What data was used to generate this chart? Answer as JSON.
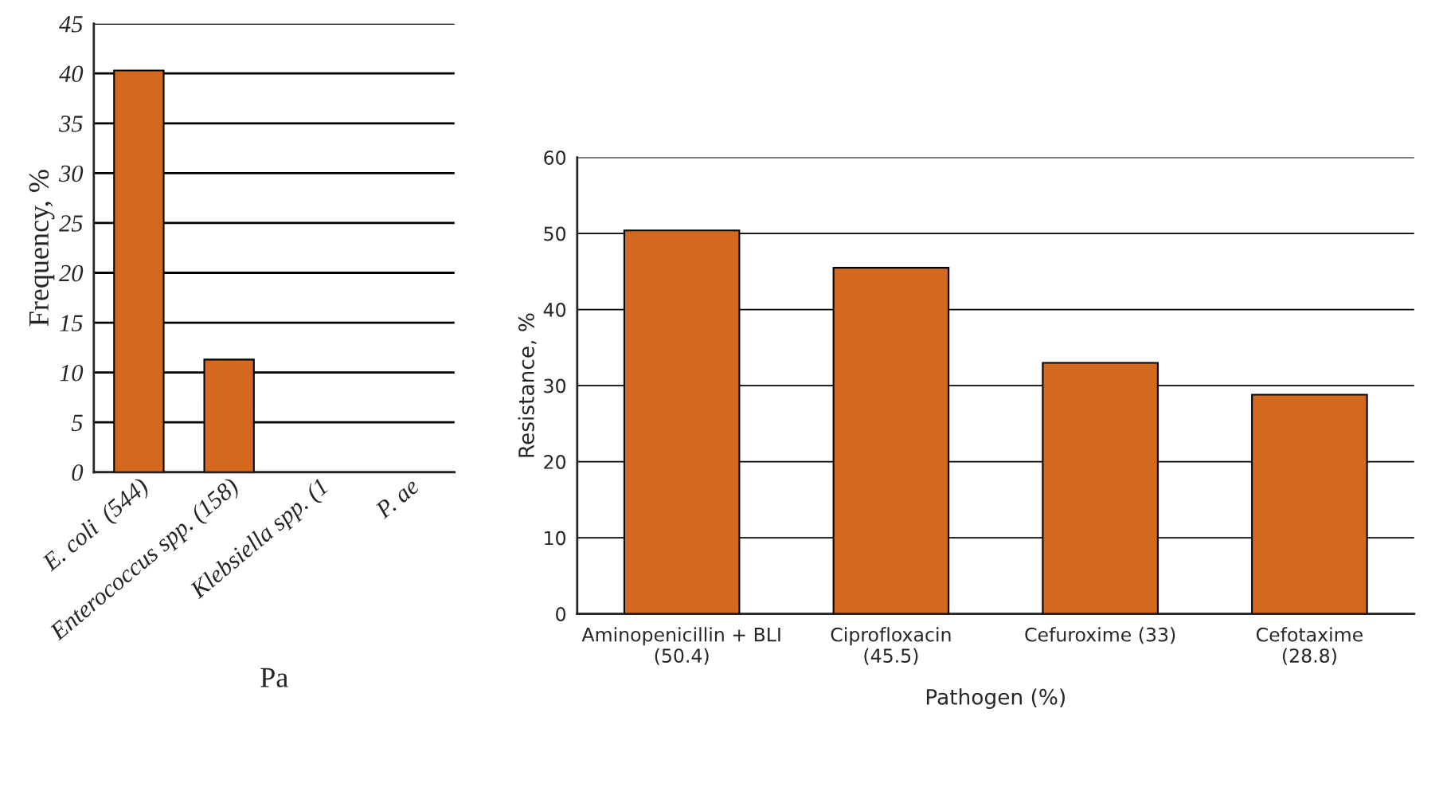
{
  "chart_data": [
    {
      "type": "bar",
      "ylabel": "Frequency, %",
      "xlabel": "Pa",
      "categories": [
        "E. coli  (544)",
        "Enterococcus spp. (158)",
        "Klebsiella spp. (1",
        "P. ae"
      ],
      "series": [
        {
          "color": "#d2691e",
          "values": [
            40.3,
            11.3,
            null,
            null
          ]
        }
      ],
      "ylim": [
        0,
        45
      ],
      "yticks": [
        0,
        5,
        10,
        15,
        20,
        25,
        30,
        35,
        40,
        45
      ],
      "grid": "y"
    },
    {
      "type": "bar",
      "ylabel": "Resistance, %",
      "xlabel": "Pathogen (%)",
      "categories": [
        "Aminopenicillin + BLI\n(50.4)",
        "Ciprofloxacin\n(45.5)",
        "Cefuroxime (33)",
        "Cefotaxime\n(28.8)"
      ],
      "series": [
        {
          "color": "#d2691e",
          "values": [
            50.4,
            45.5,
            33,
            28.8
          ]
        }
      ],
      "ylim": [
        0,
        60
      ],
      "yticks": [
        0,
        10,
        20,
        30,
        40,
        50,
        60
      ],
      "grid": "y"
    }
  ]
}
